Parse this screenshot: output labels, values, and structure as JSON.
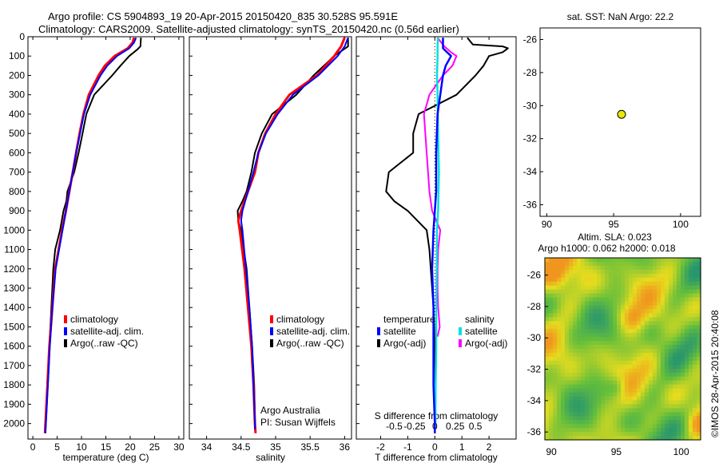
{
  "title": {
    "line1": "Argo profile: CS 5904893_19 20-Apr-2015 20150420_835 30.528S 95.591E",
    "line2": "Climatology: CARS2009. Satellite-adjusted climatology: synTS_20150420.nc (0.56d earlier)"
  },
  "colors": {
    "climatology": "#ff0000",
    "satellite": "#0000ff",
    "argo": "#000000",
    "sal_satellite": "#00e0e0",
    "sal_argo": "#ff00ff",
    "marker": "#e8e800"
  },
  "chart_data": [
    {
      "type": "line",
      "panel": "temperature",
      "xlabel": "temperature (deg C)",
      "ylabel": "",
      "xlim": [
        -1,
        31
      ],
      "ylim": [
        2080,
        0
      ],
      "y_ticks": [
        0,
        100,
        200,
        300,
        400,
        500,
        600,
        700,
        800,
        900,
        1000,
        1100,
        1200,
        1300,
        1400,
        1500,
        1600,
        1700,
        1800,
        1900,
        2000
      ],
      "x_ticks": [
        0,
        5,
        10,
        15,
        20,
        25,
        30
      ],
      "legend": [
        "climatology",
        "satellite-adj. clim.",
        "Argo(..raw -QC)"
      ],
      "series": [
        {
          "name": "climatology",
          "depth": [
            5,
            30,
            60,
            100,
            150,
            200,
            300,
            400,
            500,
            600,
            700,
            800,
            900,
            1000,
            1100,
            1200,
            1400,
            1600,
            1800,
            2000,
            2050
          ],
          "values": [
            20.8,
            20.5,
            19.5,
            16.8,
            14.8,
            13.5,
            11.5,
            10.4,
            9.6,
            8.9,
            8.2,
            7.5,
            6.8,
            6.0,
            5.3,
            4.6,
            4.0,
            3.4,
            3.0,
            2.6,
            2.5
          ]
        },
        {
          "name": "satellite-adj. clim.",
          "depth": [
            5,
            30,
            60,
            100,
            150,
            200,
            300,
            400,
            500,
            600,
            700,
            800,
            900,
            1000,
            1100,
            1200,
            1400,
            1600,
            1800,
            2000,
            2050
          ],
          "values": [
            21.2,
            20.8,
            19.8,
            17.3,
            15.3,
            13.9,
            11.8,
            10.5,
            9.7,
            8.9,
            8.2,
            7.5,
            6.8,
            6.1,
            5.4,
            4.7,
            4.0,
            3.5,
            3.1,
            2.7,
            2.6
          ]
        },
        {
          "name": "Argo(..raw -QC)",
          "depth": [
            5,
            50,
            65,
            100,
            150,
            200,
            300,
            400,
            500,
            600,
            700,
            800,
            850,
            900,
            1000,
            1100,
            1200,
            1400,
            1600,
            1800,
            1950
          ],
          "values": [
            22.2,
            22.1,
            21.5,
            19.8,
            18.0,
            16.3,
            12.6,
            11.0,
            10.2,
            9.4,
            8.5,
            7.1,
            6.9,
            6.3,
            5.6,
            4.6,
            4.2,
            3.8,
            3.4,
            3.0,
            2.7
          ]
        }
      ]
    },
    {
      "type": "line",
      "panel": "salinity",
      "xlabel": "salinity",
      "xlim": [
        33.75,
        36.1
      ],
      "ylim": [
        2080,
        0
      ],
      "x_ticks": [
        34,
        34.5,
        35,
        35.5,
        36
      ],
      "legend": [
        "climatology",
        "satellite-adj. clim.",
        "Argo(..raw -QC)"
      ],
      "annotation": [
        "Argo Australia",
        "PI: Susan Wijffels"
      ],
      "series": [
        {
          "name": "climatology",
          "depth": [
            5,
            50,
            100,
            200,
            300,
            400,
            500,
            600,
            700,
            800,
            900,
            950,
            1000,
            1200,
            1400,
            1600,
            1800,
            2000,
            2050
          ],
          "values": [
            36.0,
            35.95,
            35.85,
            35.6,
            35.2,
            35.0,
            34.85,
            34.75,
            34.7,
            34.6,
            34.5,
            34.46,
            34.48,
            34.55,
            34.6,
            34.65,
            34.68,
            34.7,
            34.71
          ]
        },
        {
          "name": "satellite-adj. clim.",
          "depth": [
            5,
            50,
            100,
            200,
            300,
            400,
            500,
            600,
            700,
            800,
            900,
            950,
            1000,
            1200,
            1400,
            1600,
            1800,
            2000,
            2030
          ],
          "values": [
            36.05,
            36.0,
            35.9,
            35.62,
            35.25,
            35.03,
            34.86,
            34.75,
            34.68,
            34.6,
            34.52,
            34.5,
            34.52,
            34.57,
            34.62,
            34.66,
            34.68,
            34.7,
            34.7
          ]
        },
        {
          "name": "Argo(..raw -QC)",
          "depth": [
            5,
            50,
            100,
            200,
            300,
            400,
            500,
            600,
            700,
            800,
            850,
            900,
            950,
            1000,
            1200,
            1400,
            1600,
            1800,
            1950
          ],
          "values": [
            36.05,
            36.05,
            35.85,
            35.55,
            35.3,
            34.95,
            34.8,
            34.7,
            34.65,
            34.58,
            34.52,
            34.45,
            34.46,
            34.5,
            34.58,
            34.62,
            34.66,
            34.69,
            34.7
          ]
        }
      ]
    },
    {
      "type": "line",
      "panel": "difference",
      "xlabel": "T difference from climatology",
      "x2label": "S difference from climatology",
      "xlim": [
        -2.9,
        3.0
      ],
      "ylim": [
        2080,
        0
      ],
      "x_ticks": [
        -2,
        -1,
        0,
        1,
        2
      ],
      "x2_tick_labels": [
        "-0.5",
        "-0.25",
        "0",
        "0.25",
        "0.5"
      ],
      "legend_headers": [
        "temperature",
        "salinity"
      ],
      "legend": [
        "satellite",
        "Argo(-adj)",
        "satellite",
        "Argo(-adj)"
      ],
      "series": [
        {
          "name": "satellite",
          "group": "temperature",
          "depth": [
            5,
            60,
            100,
            150,
            200,
            300,
            400,
            600,
            800,
            1000,
            1200,
            1400,
            1600,
            1800,
            2000,
            2050
          ],
          "values": [
            0.3,
            0.3,
            0.6,
            0.4,
            0.3,
            0.2,
            0.1,
            0.05,
            0.05,
            -0.05,
            -0.1,
            -0.05,
            -0.05,
            -0.05,
            0,
            0
          ]
        },
        {
          "name": "Argo(-adj)",
          "group": "temperature",
          "depth": [
            5,
            40,
            50,
            60,
            80,
            100,
            150,
            200,
            300,
            400,
            500,
            600,
            700,
            800,
            850,
            900,
            1000,
            1100,
            1200,
            1300,
            1400,
            1600,
            1800,
            1950
          ],
          "values": [
            1.2,
            1.4,
            2.5,
            2.7,
            2.5,
            2.0,
            1.8,
            1.5,
            0.8,
            -0.6,
            -0.8,
            -0.8,
            -1.7,
            -1.8,
            -1.5,
            -1.0,
            -0.3,
            -0.2,
            -0.15,
            -0.1,
            -0.05,
            0,
            0.02,
            0
          ]
        },
        {
          "name": "satellite",
          "group": "salinity",
          "depth": [
            5,
            50,
            100,
            200,
            300,
            500,
            700,
            900,
            1000,
            1200,
            1400,
            1600,
            1800,
            2000
          ],
          "values": [
            0.12,
            0.1,
            0.1,
            0.08,
            0.1,
            0.12,
            0.15,
            0.12,
            0.08,
            0.07,
            0.05,
            0.05,
            0.03,
            0.02
          ]
        },
        {
          "name": "Argo(-adj)",
          "group": "salinity",
          "depth": [
            5,
            50,
            80,
            100,
            150,
            200,
            300,
            400,
            500,
            600,
            700,
            800,
            900,
            1000,
            1100,
            1200,
            1300,
            1400,
            1500,
            1550
          ],
          "values": [
            0.1,
            0.35,
            0.6,
            0.8,
            0.65,
            0.3,
            -0.2,
            -0.4,
            -0.35,
            -0.3,
            -0.25,
            -0.2,
            -0.1,
            0.2,
            0.12,
            0.1,
            0.1,
            0.12,
            0.18,
            0.1
          ]
        }
      ]
    },
    {
      "type": "scatter",
      "panel": "location",
      "title": "sat. SST: NaN Argo: 22.2",
      "xlim": [
        89.5,
        101.5
      ],
      "ylim": [
        -36.7,
        -25.3
      ],
      "x_ticks": [
        90,
        95,
        100
      ],
      "y_ticks": [
        -26,
        -28,
        -30,
        -32,
        -34,
        -36
      ],
      "points": [
        {
          "x": 95.591,
          "y": -30.528
        }
      ]
    },
    {
      "type": "heatmap",
      "panel": "altimetry",
      "title_lines": [
        "Altim. SLA: 0.023",
        "Argo h1000: 0.062 h2000: 0.018"
      ],
      "xlim": [
        89.5,
        101.5
      ],
      "ylim": [
        -36.5,
        -24.9
      ],
      "x_ticks": [
        90,
        95,
        100
      ],
      "y_ticks": [
        -26,
        -28,
        -30,
        -32,
        -34,
        -36
      ]
    }
  ],
  "footer": {
    "credit": "©IMOS 28-Apr-2015 20:40:08"
  }
}
